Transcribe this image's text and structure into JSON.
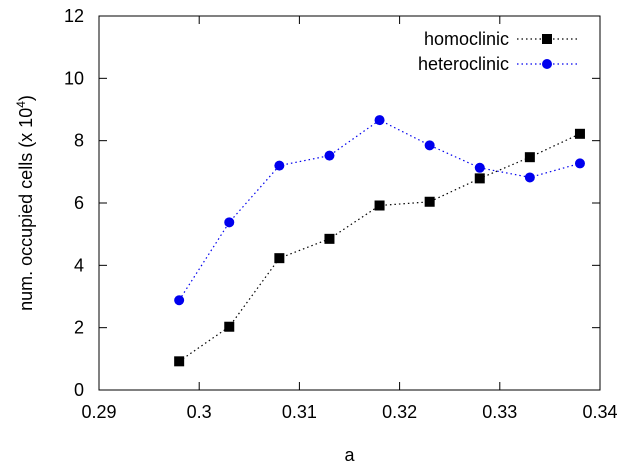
{
  "chart_data": {
    "type": "line",
    "xlabel": "a",
    "ylabel": "num. occupied cells (x 10",
    "ylabel_superscript": "4",
    "ylabel_suffix": ")",
    "xlim": [
      0.29,
      0.34
    ],
    "ylim": [
      0,
      12
    ],
    "x_ticks": [
      0.29,
      0.3,
      0.31,
      0.32,
      0.33,
      0.34
    ],
    "x_tick_labels": [
      "0.29",
      "0.3",
      "0.31",
      "0.32",
      "0.33",
      "0.34"
    ],
    "y_ticks": [
      0,
      2,
      4,
      6,
      8,
      10,
      12
    ],
    "y_tick_labels": [
      "0",
      "2",
      "4",
      "6",
      "8",
      "10",
      "12"
    ],
    "grid": false,
    "legend_position": "top-right",
    "series": [
      {
        "name": "homoclinic",
        "color": "#000000",
        "marker": "square",
        "line_style": "dotted",
        "x": [
          0.298,
          0.303,
          0.308,
          0.313,
          0.318,
          0.323,
          0.328,
          0.333,
          0.338
        ],
        "y": [
          0.92,
          2.03,
          4.23,
          4.85,
          5.92,
          6.04,
          6.79,
          7.47,
          8.22
        ]
      },
      {
        "name": "heteroclinic",
        "color": "#0000ee",
        "marker": "circle",
        "line_style": "dotted",
        "x": [
          0.298,
          0.303,
          0.308,
          0.313,
          0.318,
          0.323,
          0.328,
          0.333,
          0.338
        ],
        "y": [
          2.88,
          5.38,
          7.2,
          7.52,
          8.66,
          7.85,
          7.13,
          6.82,
          7.27
        ]
      }
    ]
  }
}
